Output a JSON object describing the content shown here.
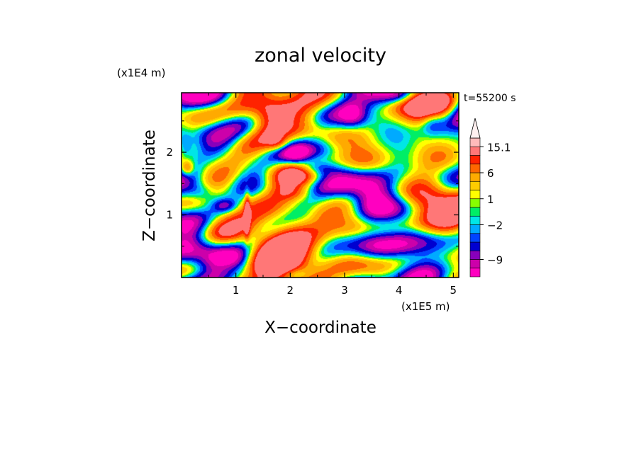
{
  "chart_data": {
    "type": "heatmap",
    "title": "zonal velocity",
    "xlabel": "X−coordinate",
    "ylabel": "Z−coordinate",
    "x_scale_label": "(x1E5 m)",
    "y_scale_label": "(x1E4 m)",
    "time_label": "t=55200 s",
    "xlim": [
      0.0,
      5.1
    ],
    "ylim": [
      0.0,
      2.95
    ],
    "x_ticks": [
      {
        "value": 1,
        "label": "1"
      },
      {
        "value": 2,
        "label": "2"
      },
      {
        "value": 3,
        "label": "3"
      },
      {
        "value": 4,
        "label": "4"
      },
      {
        "value": 5,
        "label": "5"
      }
    ],
    "y_ticks": [
      {
        "value": 1,
        "label": "1"
      },
      {
        "value": 2,
        "label": "2"
      }
    ],
    "colorbar": {
      "colors": [
        "#ff00c0",
        "#cc00aa",
        "#8800bb",
        "#0000d0",
        "#0044ff",
        "#00aaff",
        "#00e6e6",
        "#00ee66",
        "#88ff00",
        "#ffff00",
        "#ffcc00",
        "#ffaa00",
        "#ff6600",
        "#ff2200",
        "#ff7777",
        "#ffbbbb",
        "#fff0f0"
      ],
      "labels": [
        {
          "index": 2,
          "label": "−9"
        },
        {
          "index": 6,
          "label": "−2"
        },
        {
          "index": 9,
          "label": "1"
        },
        {
          "index": 12,
          "label": "6"
        },
        {
          "index": 15,
          "label": "15.1"
        }
      ]
    },
    "features": [
      {
        "x": 2.45,
        "z": 1.05,
        "u": 2.2,
        "rx": 0.9,
        "rz": 0.75
      },
      {
        "x": 2.55,
        "z": 1.0,
        "u": 1.3,
        "rx": 0.2,
        "rz": 0.14
      },
      {
        "x": 1.95,
        "z": 0.55,
        "u": 5.5,
        "rx": 0.5,
        "rz": 0.3
      },
      {
        "x": 2.05,
        "z": 1.35,
        "u": 5.0,
        "rx": 0.35,
        "rz": 0.12
      },
      {
        "x": 0.35,
        "z": 1.35,
        "u": -10.0,
        "rx": 0.35,
        "rz": 0.18
      },
      {
        "x": 0.8,
        "z": 1.15,
        "u": -9.0,
        "rx": 0.25,
        "rz": 0.12
      },
      {
        "x": 0.05,
        "z": 2.1,
        "u": -8.0,
        "rx": 0.15,
        "rz": 0.2
      },
      {
        "x": 2.45,
        "z": 1.75,
        "u": -10.0,
        "rx": 0.35,
        "rz": 0.12
      },
      {
        "x": 2.1,
        "z": 1.95,
        "u": -8.0,
        "rx": 0.25,
        "rz": 0.15
      },
      {
        "x": 3.15,
        "z": 2.6,
        "u": -8.0,
        "rx": 0.25,
        "rz": 0.2
      },
      {
        "x": 4.0,
        "z": 2.9,
        "u": -6.0,
        "rx": 0.3,
        "rz": 0.12
      },
      {
        "x": 4.6,
        "z": 2.5,
        "u": -6.0,
        "rx": 0.2,
        "rz": 0.2
      },
      {
        "x": 2.1,
        "z": 0.05,
        "u": -5.0,
        "rx": 0.25,
        "rz": 0.1
      },
      {
        "x": 1.2,
        "z": 1.0,
        "u": 12.0,
        "rx": 0.05,
        "rz": 0.35
      },
      {
        "x": 0.1,
        "z": 1.75,
        "u": 10.0,
        "rx": 0.12,
        "rz": 0.12
      },
      {
        "x": 1.75,
        "z": 2.15,
        "u": 7.0,
        "rx": 0.2,
        "rz": 0.12
      },
      {
        "x": 1.6,
        "z": 2.55,
        "u": 5.5,
        "rx": 0.3,
        "rz": 0.25
      },
      {
        "x": 0.85,
        "z": 0.15,
        "u": 6.0,
        "rx": 0.3,
        "rz": 0.15
      },
      {
        "x": 3.5,
        "z": 1.1,
        "u": -3.0,
        "rx": 0.3,
        "rz": 0.6
      },
      {
        "x": 4.4,
        "z": 0.5,
        "u": -2.0,
        "rx": 0.6,
        "rz": 0.4
      }
    ]
  }
}
